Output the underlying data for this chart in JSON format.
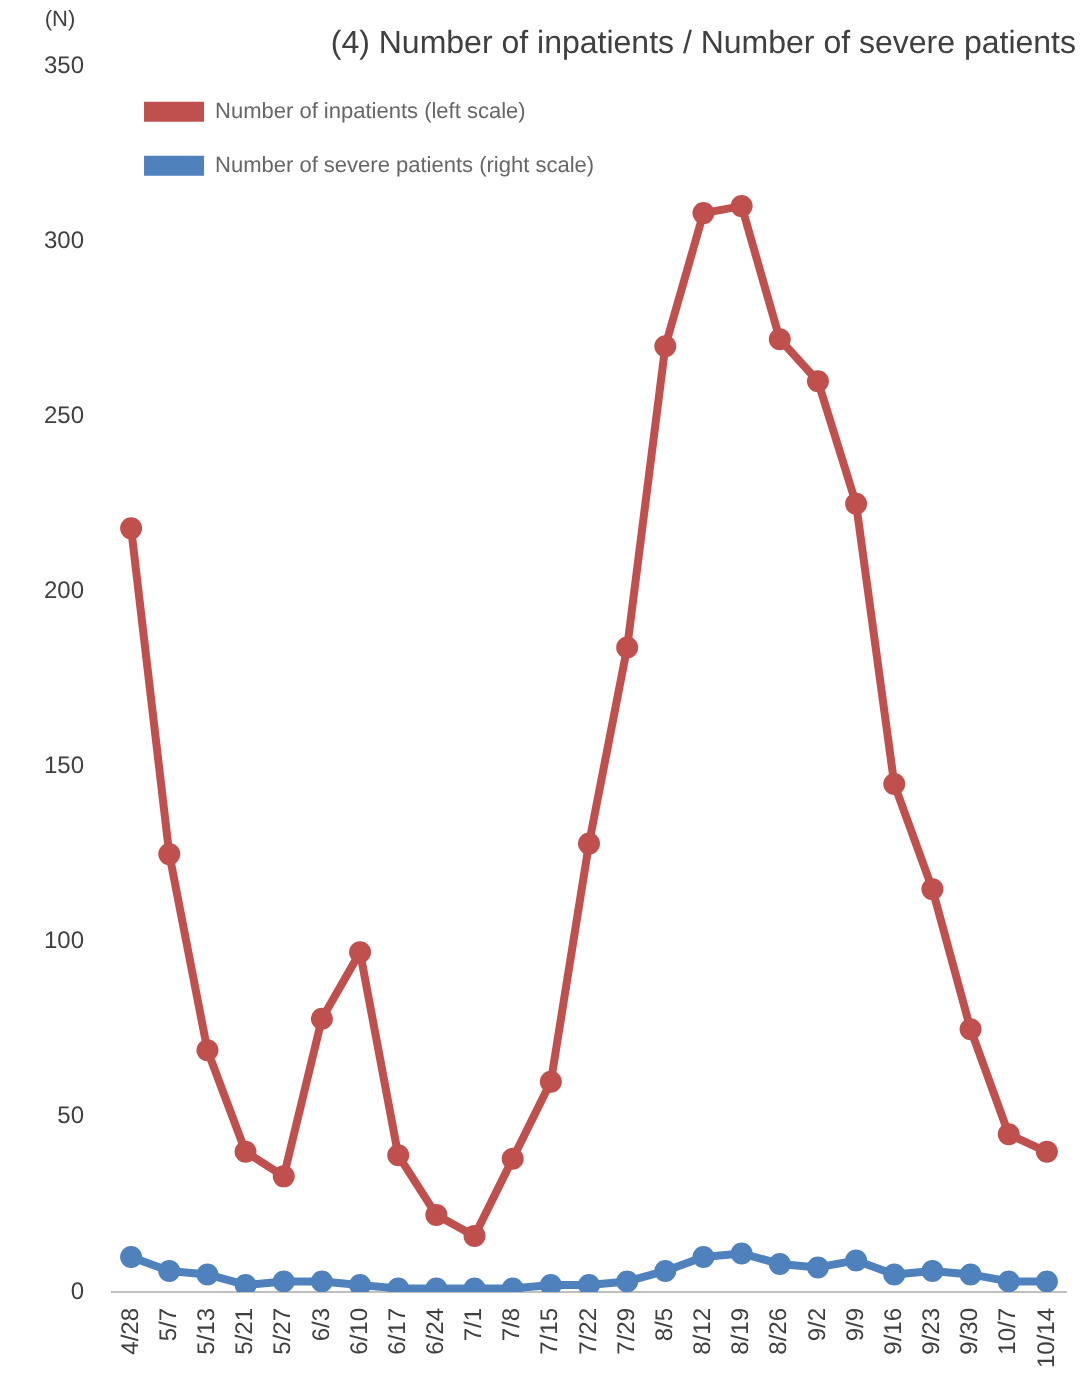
{
  "chart_data": {
    "type": "line",
    "title": "(4) Number of inpatients / Number of severe patients",
    "ylabel": "(N)",
    "categories": [
      "4/28",
      "5/7",
      "5/13",
      "5/21",
      "5/27",
      "6/3",
      "6/10",
      "6/17",
      "6/24",
      "7/1",
      "7/8",
      "7/15",
      "7/22",
      "7/29",
      "8/5",
      "8/12",
      "8/19",
      "8/26",
      "9/2",
      "9/9",
      "9/16",
      "9/23",
      "9/30",
      "10/7",
      "10/14"
    ],
    "series": [
      {
        "name": "Number of inpatients (left scale)",
        "color": "#c0504d",
        "values": [
          218,
          125,
          69,
          40,
          33,
          78,
          97,
          39,
          22,
          16,
          38,
          60,
          128,
          184,
          270,
          308,
          310,
          272,
          260,
          225,
          145,
          115,
          75,
          45,
          40
        ]
      },
      {
        "name": "Number of severe patients (right scale)",
        "color": "#4f81bd",
        "values": [
          10,
          6,
          5,
          2,
          3,
          3,
          2,
          1,
          1,
          1,
          1,
          2,
          2,
          3,
          6,
          10,
          11,
          8,
          7,
          9,
          5,
          6,
          5,
          3,
          3
        ]
      }
    ],
    "ylim": [
      0,
      350
    ],
    "yticks": [
      0,
      50,
      100,
      150,
      200,
      250,
      300,
      350
    ],
    "grid": false,
    "legend": "top left",
    "marker": "circle",
    "line_style": "solid"
  }
}
